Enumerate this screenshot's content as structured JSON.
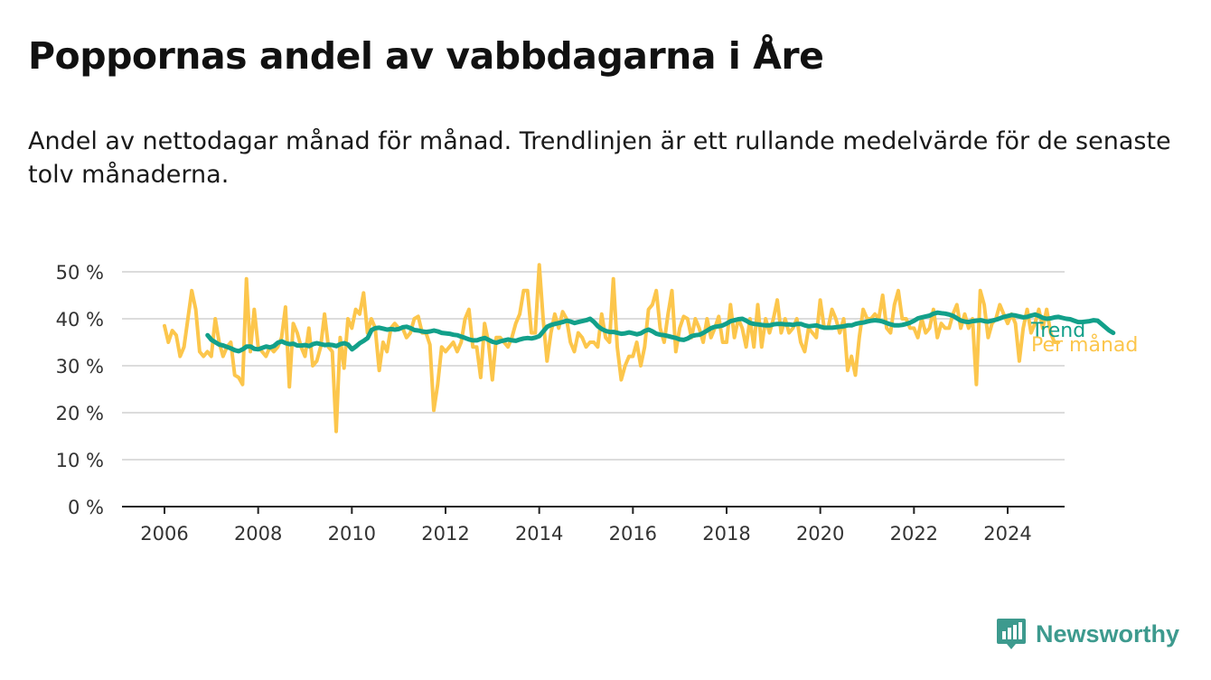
{
  "header": {
    "title": "Poppornas andel av vabbdagarna i Åre",
    "subtitle": "Andel av nettodagar månad för månad. Trendlinjen är ett rullande medelvärde för de senaste tolv månaderna."
  },
  "brand": {
    "name": "Newsworthy",
    "icon": "newsworthy-logo-icon"
  },
  "colors": {
    "trend": "#12a08a",
    "monthly": "#fcc64c",
    "grid": "#dcdcdc",
    "axis": "#222222"
  },
  "chart_data": {
    "type": "line",
    "title": "Poppornas andel av vabbdagarna i Åre",
    "xlabel": "",
    "ylabel": "",
    "xlim": [
      2006,
      2024.4
    ],
    "ylim": [
      0,
      50
    ],
    "y_ticks": [
      0,
      10,
      20,
      30,
      40,
      50
    ],
    "y_tick_labels": [
      "0 %",
      "10 %",
      "20 %",
      "30 %",
      "40 %",
      "50 %"
    ],
    "x_ticks": [
      2006,
      2008,
      2010,
      2012,
      2014,
      2016,
      2018,
      2020,
      2022,
      2024
    ],
    "x_tick_labels": [
      "2006",
      "2008",
      "2010",
      "2012",
      "2014",
      "2016",
      "2018",
      "2020",
      "2022",
      "2024"
    ],
    "grid": true,
    "legend_placement": "right-end",
    "series": [
      {
        "name": "Per månad",
        "color": "#fcc64c",
        "x_start": 2006.0,
        "step": 0.08333,
        "values": [
          38.5,
          35,
          37.5,
          36.5,
          32,
          34,
          40,
          46,
          42,
          33,
          32,
          33,
          32,
          40,
          35,
          32,
          34,
          35,
          28,
          27.5,
          26,
          48.5,
          33,
          42,
          34,
          33,
          32,
          34,
          33,
          34,
          36,
          42.5,
          25.5,
          39,
          37,
          34,
          32,
          38,
          30,
          31,
          34,
          41,
          34,
          33,
          16,
          36,
          29.5,
          40,
          38,
          42,
          41,
          45.5,
          37,
          40,
          38,
          29,
          35,
          33,
          38,
          39,
          38,
          38,
          36,
          37,
          40,
          40.5,
          37,
          37,
          34.5,
          20.5,
          26,
          34,
          33,
          34,
          35,
          33,
          35,
          40,
          42,
          34,
          34,
          27.5,
          39,
          35,
          27,
          36,
          36,
          35,
          34,
          36,
          39,
          41,
          46,
          46,
          37,
          37,
          51.5,
          40,
          31,
          37,
          41,
          38,
          41.5,
          40,
          35,
          33,
          37,
          36,
          34,
          35,
          35,
          34,
          41,
          36,
          35,
          48.5,
          34,
          27,
          30,
          32,
          32,
          35,
          30,
          34,
          42,
          43,
          46,
          38,
          35,
          41,
          46,
          33,
          38,
          40.5,
          40,
          36,
          40,
          38,
          35,
          40,
          36,
          38,
          40.5,
          35,
          35,
          43,
          36,
          40,
          38,
          34,
          40,
          34,
          43,
          34,
          40,
          37,
          40,
          44,
          37,
          40,
          37,
          38,
          40,
          35,
          33,
          38,
          37,
          36,
          44,
          38,
          38,
          42,
          40,
          37,
          40,
          29,
          32,
          28,
          36,
          42,
          40,
          40,
          41,
          40,
          45,
          38,
          37,
          43,
          46,
          40,
          40,
          38,
          38,
          36,
          40,
          37,
          38,
          42,
          36,
          39,
          38,
          38,
          41,
          43,
          38,
          41,
          38,
          40,
          26,
          46,
          43,
          36,
          39,
          40,
          43,
          41,
          39,
          41,
          39,
          31,
          38,
          42,
          37,
          39,
          42,
          38,
          42,
          37,
          35,
          35
        ]
      },
      {
        "name": "Trend",
        "color": "#12a08a",
        "x_start": 2006.92,
        "step": 0.08333,
        "values": [
          36.5,
          35.5,
          35,
          34.5,
          34.3,
          34,
          33.7,
          33.3,
          33.1,
          33.5,
          34.1,
          34.1,
          33.6,
          33.5,
          33.8,
          34.1,
          33.9,
          34.2,
          34.9,
          35.2,
          34.8,
          34.6,
          34.7,
          34.3,
          34.3,
          34.4,
          34.2,
          34.6,
          34.8,
          34.6,
          34.4,
          34.5,
          34.4,
          34.2,
          34.6,
          34.8,
          34.5,
          33.5,
          34.1,
          34.8,
          35.3,
          35.9,
          37.6,
          38,
          38.1,
          37.9,
          37.7,
          37.8,
          37.7,
          37.8,
          38.2,
          38.3,
          38,
          37.6,
          37.5,
          37.3,
          37.2,
          37.3,
          37.5,
          37.3,
          37,
          36.9,
          36.8,
          36.6,
          36.5,
          36.2,
          35.9,
          35.6,
          35.4,
          35.4,
          35.7,
          35.9,
          35.5,
          35.1,
          34.9,
          35.2,
          35.4,
          35.6,
          35.4,
          35.3,
          35.6,
          35.8,
          35.9,
          35.8,
          36,
          36.3,
          37.3,
          38.3,
          38.7,
          38.9,
          39.1,
          39.3,
          39.6,
          39.4,
          39.1,
          39.3,
          39.5,
          39.7,
          40,
          39.3,
          38.4,
          37.8,
          37.4,
          37.2,
          37.2,
          37,
          36.8,
          36.9,
          37.1,
          36.9,
          36.7,
          36.9,
          37.4,
          37.7,
          37.3,
          36.8,
          36.6,
          36.5,
          36.3,
          36.1,
          35.9,
          35.6,
          35.5,
          35.8,
          36.3,
          36.5,
          36.6,
          37,
          37.5,
          38,
          38.3,
          38.4,
          38.6,
          39,
          39.5,
          39.7,
          39.9,
          40,
          39.6,
          39.1,
          38.9,
          38.8,
          38.7,
          38.6,
          38.6,
          38.8,
          38.9,
          38.9,
          38.8,
          38.8,
          38.7,
          38.9,
          38.9,
          38.6,
          38.4,
          38.5,
          38.6,
          38.3,
          38.1,
          38.1,
          38.1,
          38.2,
          38.3,
          38.4,
          38.6,
          38.6,
          38.9,
          39.1,
          39.2,
          39.4,
          39.6,
          39.7,
          39.6,
          39.4,
          39.1,
          38.8,
          38.6,
          38.6,
          38.7,
          38.9,
          39.2,
          39.6,
          40.1,
          40.3,
          40.5,
          40.7,
          41.1,
          41.3,
          41.2,
          41.1,
          40.9,
          40.6,
          40.1,
          39.6,
          39.4,
          39.3,
          39.5,
          39.6,
          39.7,
          39.5,
          39.4,
          39.6,
          39.8,
          40.1,
          40.4,
          40.6,
          40.8,
          40.7,
          40.5,
          40.3,
          40.4,
          40.7,
          40.9,
          40.6,
          40.2,
          40,
          40.1,
          40.3,
          40.4,
          40.2,
          40,
          39.9,
          39.6,
          39.3,
          39.3,
          39.4,
          39.5,
          39.7,
          39.6,
          38.9,
          38.2,
          37.5,
          37
        ]
      }
    ],
    "legend_labels": {
      "trend": "Trend",
      "monthly": "Per månad"
    }
  }
}
